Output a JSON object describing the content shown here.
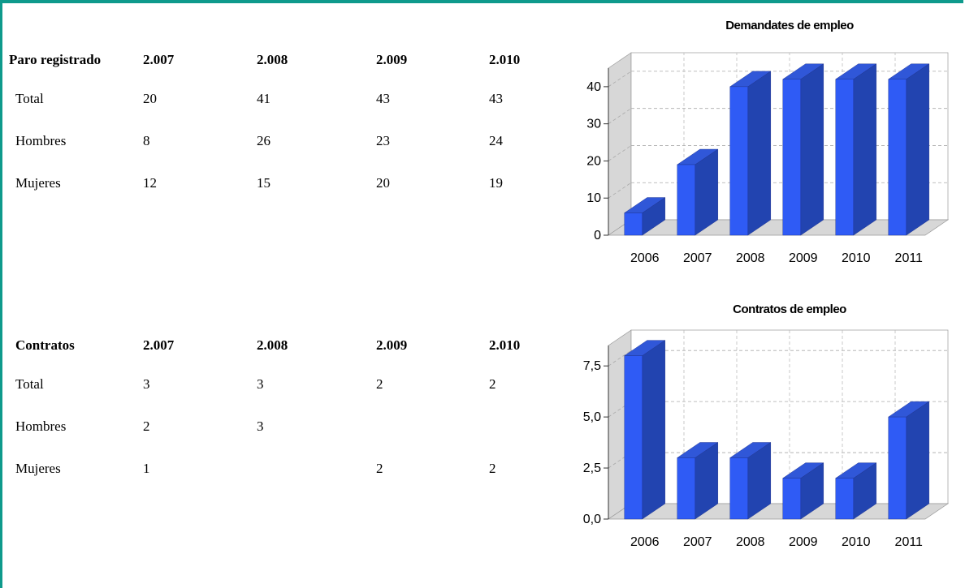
{
  "colors": {
    "frame": "#0e9a8c",
    "bar_front": "#2f5bf5",
    "bar_side": "#2244b0",
    "bar_top": "#3057d8"
  },
  "paro": {
    "header": [
      "Paro registrado",
      "2.007",
      "2.008",
      "2.009",
      "2.010"
    ],
    "rows": [
      [
        "Total",
        "20",
        "41",
        "43",
        "43"
      ],
      [
        "Hombres",
        "8",
        "26",
        "23",
        "24"
      ],
      [
        "Mujeres",
        "12",
        "15",
        "20",
        "19"
      ]
    ]
  },
  "contratos": {
    "header": [
      "Contratos",
      "2.007",
      "2.008",
      "2.009",
      "2.010"
    ],
    "rows": [
      [
        "Total",
        "3",
        "3",
        "2",
        "2"
      ],
      [
        "Hombres",
        "2",
        "3",
        "",
        ""
      ],
      [
        "Mujeres",
        "1",
        "",
        "2",
        "2"
      ]
    ]
  },
  "chart_data": [
    {
      "type": "bar",
      "title": "Demandates de empleo",
      "categories": [
        "2006",
        "2007",
        "2008",
        "2009",
        "2010",
        "2011"
      ],
      "values": [
        6,
        19,
        40,
        42,
        42,
        42
      ],
      "yticks": [
        "0",
        "10",
        "20",
        "30",
        "40"
      ],
      "ylim": [
        0,
        45
      ],
      "grid": true,
      "three_d": true
    },
    {
      "type": "bar",
      "title": "Contratos de empleo",
      "categories": [
        "2006",
        "2007",
        "2008",
        "2009",
        "2010",
        "2011"
      ],
      "values": [
        8,
        3,
        3,
        2,
        2,
        5
      ],
      "yticks": [
        "0,0",
        "2,5",
        "5,0",
        "7,5"
      ],
      "ylim": [
        0,
        8.5
      ],
      "grid": true,
      "three_d": true
    }
  ]
}
